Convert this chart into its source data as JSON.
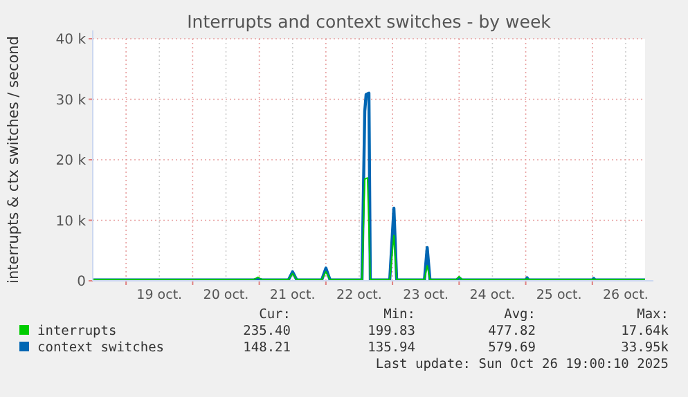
{
  "chart_data": {
    "type": "line",
    "title": "Interrupts and context switches - by week",
    "ylabel": "interrupts & ctx switches / second",
    "xlim": [
      "2025-10-18T12:00",
      "2025-10-26T19:00"
    ],
    "xticks": [
      {
        "value": "2025-10-19T00:00",
        "label": null
      },
      {
        "value": "2025-10-19T12:00",
        "label": "19 oct."
      },
      {
        "value": "2025-10-20T00:00",
        "label": null
      },
      {
        "value": "2025-10-20T12:00",
        "label": "20 oct."
      },
      {
        "value": "2025-10-21T00:00",
        "label": null
      },
      {
        "value": "2025-10-21T12:00",
        "label": "21 oct."
      },
      {
        "value": "2025-10-22T00:00",
        "label": null
      },
      {
        "value": "2025-10-22T12:00",
        "label": "22 oct."
      },
      {
        "value": "2025-10-23T00:00",
        "label": null
      },
      {
        "value": "2025-10-23T12:00",
        "label": "23 oct."
      },
      {
        "value": "2025-10-24T00:00",
        "label": null
      },
      {
        "value": "2025-10-24T12:00",
        "label": "24 oct."
      },
      {
        "value": "2025-10-25T00:00",
        "label": null
      },
      {
        "value": "2025-10-25T12:00",
        "label": "25 oct."
      },
      {
        "value": "2025-10-26T00:00",
        "label": null
      },
      {
        "value": "2025-10-26T12:00",
        "label": "26 oct."
      }
    ],
    "ylim": [
      0,
      40000
    ],
    "yticks": [
      0,
      {
        "value": 10000,
        "label": "10 k"
      },
      {
        "value": 20000,
        "label": "20 k"
      },
      {
        "value": 30000,
        "label": "30 k"
      },
      {
        "value": 40000,
        "label": "40 k"
      }
    ],
    "grid": true,
    "legend": "bottom",
    "series": [
      {
        "name": "interrupts",
        "color": "#00cc00",
        "x": [
          "2025-10-18T12:00",
          "2025-10-20T22:00",
          "2025-10-20T23:30",
          "2025-10-21T01:00",
          "2025-10-21T10:30",
          "2025-10-21T12:00",
          "2025-10-21T13:30",
          "2025-10-21T22:30",
          "2025-10-22T00:00",
          "2025-10-22T01:30",
          "2025-10-22T13:00",
          "2025-10-22T14:00",
          "2025-10-22T15:00",
          "2025-10-22T16:00",
          "2025-10-22T23:00",
          "2025-10-23T00:30",
          "2025-10-23T01:30",
          "2025-10-23T11:30",
          "2025-10-23T12:30",
          "2025-10-23T13:30",
          "2025-10-23T23:00",
          "2025-10-24T00:00",
          "2025-10-24T01:00",
          "2025-10-25T00:00",
          "2025-10-25T00:30",
          "2025-10-25T01:00",
          "2025-10-26T00:00",
          "2025-10-26T00:30",
          "2025-10-26T01:00",
          "2025-10-26T19:00"
        ],
        "values": [
          200,
          200,
          600,
          200,
          200,
          1200,
          200,
          200,
          1500,
          200,
          200,
          16800,
          17000,
          200,
          200,
          7500,
          200,
          200,
          2500,
          200,
          200,
          700,
          200,
          200,
          400,
          200,
          200,
          300,
          200,
          200
        ]
      },
      {
        "name": "context switches",
        "color": "#0066b3",
        "x": [
          "2025-10-18T12:00",
          "2025-10-20T22:00",
          "2025-10-20T23:30",
          "2025-10-21T01:00",
          "2025-10-21T10:30",
          "2025-10-21T12:00",
          "2025-10-21T13:30",
          "2025-10-21T22:30",
          "2025-10-22T00:00",
          "2025-10-22T01:30",
          "2025-10-22T13:00",
          "2025-10-22T14:00",
          "2025-10-22T14:30",
          "2025-10-22T15:30",
          "2025-10-22T16:00",
          "2025-10-22T23:00",
          "2025-10-23T00:30",
          "2025-10-23T01:30",
          "2025-10-23T11:30",
          "2025-10-23T12:30",
          "2025-10-23T13:30",
          "2025-10-23T23:00",
          "2025-10-24T00:00",
          "2025-10-24T01:00",
          "2025-10-25T00:00",
          "2025-10-25T00:30",
          "2025-10-25T01:00",
          "2025-10-26T00:00",
          "2025-10-26T00:30",
          "2025-10-26T01:00",
          "2025-10-26T19:00"
        ],
        "values": [
          150,
          150,
          300,
          150,
          150,
          1500,
          150,
          150,
          2100,
          150,
          150,
          28000,
          30800,
          31000,
          150,
          150,
          12000,
          150,
          150,
          5500,
          150,
          150,
          500,
          150,
          150,
          500,
          150,
          150,
          400,
          150,
          150
        ]
      }
    ],
    "annotations": [
      "Cur:",
      "Min:",
      "Avg:",
      "Max:",
      "235.40",
      "199.83",
      "477.82",
      "17.64k",
      "148.21",
      "135.94",
      "579.69",
      "33.95k",
      "Last update: Sun Oct 26 19:00:10 2025"
    ]
  }
}
